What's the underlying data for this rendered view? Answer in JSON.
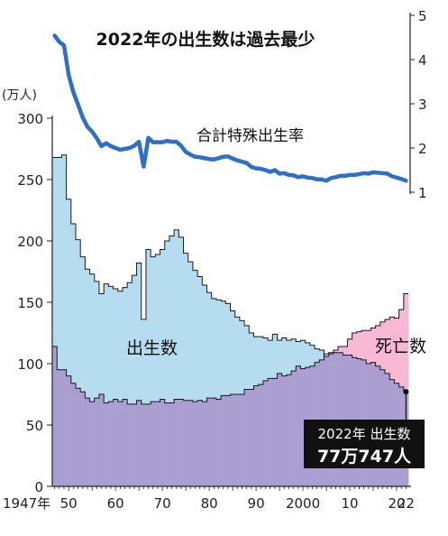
{
  "chart_data": {
    "type": "area",
    "title": "2022年の出生数は過去最少",
    "left_axis": {
      "unit": "(万人)",
      "ylim": [
        0,
        300
      ],
      "ticks": [
        0,
        50,
        100,
        150,
        200,
        250,
        300
      ]
    },
    "right_axis": {
      "ylim": [
        1,
        5
      ],
      "ticks": [
        1,
        2,
        3,
        4,
        5
      ]
    },
    "x_axis": {
      "xlim": [
        1947,
        2022
      ],
      "ticks": [
        {
          "x": 1947,
          "label": "1947年"
        },
        {
          "x": 1950,
          "label": "50"
        },
        {
          "x": 1960,
          "label": "60"
        },
        {
          "x": 1970,
          "label": "70"
        },
        {
          "x": 1980,
          "label": "80"
        },
        {
          "x": 1990,
          "label": "90"
        },
        {
          "x": 2000,
          "label": "2000"
        },
        {
          "x": 2010,
          "label": "10"
        },
        {
          "x": 2020,
          "label": "20"
        },
        {
          "x": 2022,
          "label": "22"
        }
      ]
    },
    "series": [
      {
        "name": "出生数",
        "unit": "万人",
        "color": "#b6dcf0",
        "x": [
          1947,
          1948,
          1949,
          1950,
          1951,
          1952,
          1953,
          1954,
          1955,
          1956,
          1957,
          1958,
          1959,
          1960,
          1961,
          1962,
          1963,
          1964,
          1965,
          1966,
          1967,
          1968,
          1969,
          1970,
          1971,
          1972,
          1973,
          1974,
          1975,
          1976,
          1977,
          1978,
          1979,
          1980,
          1981,
          1982,
          1983,
          1984,
          1985,
          1986,
          1987,
          1988,
          1989,
          1990,
          1991,
          1992,
          1993,
          1994,
          1995,
          1996,
          1997,
          1998,
          1999,
          2000,
          2001,
          2002,
          2003,
          2004,
          2005,
          2006,
          2007,
          2008,
          2009,
          2010,
          2011,
          2012,
          2013,
          2014,
          2015,
          2016,
          2017,
          2018,
          2019,
          2020,
          2021,
          2022
        ],
        "values": [
          268,
          268,
          270,
          234,
          214,
          201,
          187,
          177,
          173,
          167,
          157,
          165,
          163,
          161,
          159,
          162,
          166,
          172,
          182,
          136,
          193,
          187,
          189,
          193,
          200,
          204,
          209,
          203,
          190,
          183,
          176,
          171,
          164,
          158,
          153,
          152,
          151,
          149,
          143,
          138,
          135,
          131,
          125,
          122,
          122,
          121,
          119,
          124,
          119,
          121,
          119,
          120,
          118,
          119,
          117,
          115,
          112,
          111,
          106,
          109,
          109,
          109,
          107,
          107,
          105,
          104,
          103,
          100,
          101,
          98,
          95,
          92,
          87,
          84,
          81,
          77.0747
        ]
      },
      {
        "name": "死亡数",
        "unit": "万人",
        "color": "#f6b8d2",
        "x": [
          1947,
          1948,
          1949,
          1950,
          1951,
          1952,
          1953,
          1954,
          1955,
          1956,
          1957,
          1958,
          1959,
          1960,
          1961,
          1962,
          1963,
          1964,
          1965,
          1966,
          1967,
          1968,
          1969,
          1970,
          1971,
          1972,
          1973,
          1974,
          1975,
          1976,
          1977,
          1978,
          1979,
          1980,
          1981,
          1982,
          1983,
          1984,
          1985,
          1986,
          1987,
          1988,
          1989,
          1990,
          1991,
          1992,
          1993,
          1994,
          1995,
          1996,
          1997,
          1998,
          1999,
          2000,
          2001,
          2002,
          2003,
          2004,
          2005,
          2006,
          2007,
          2008,
          2009,
          2010,
          2011,
          2012,
          2013,
          2014,
          2015,
          2016,
          2017,
          2018,
          2019,
          2020,
          2021,
          2022
        ],
        "values": [
          114,
          95,
          95,
          90,
          84,
          80,
          77,
          72,
          69,
          72,
          75,
          68,
          69,
          71,
          69,
          71,
          67,
          67,
          70,
          67,
          67,
          69,
          69,
          71,
          68,
          68,
          71,
          71,
          70,
          70,
          69,
          70,
          69,
          72,
          72,
          71,
          74,
          74,
          75,
          75,
          75,
          79,
          79,
          82,
          83,
          86,
          88,
          88,
          92,
          90,
          91,
          94,
          98,
          96,
          97,
          98,
          101,
          103,
          108,
          108,
          111,
          114,
          114,
          120,
          125,
          126,
          127,
          127,
          129,
          131,
          134,
          136,
          138,
          137,
          144,
          157
        ]
      },
      {
        "name": "合計特殊出生率",
        "color": "#2f6fc4",
        "axis": "right",
        "x": [
          1947,
          1948,
          1949,
          1950,
          1951,
          1952,
          1953,
          1954,
          1955,
          1956,
          1957,
          1958,
          1959,
          1960,
          1961,
          1962,
          1963,
          1964,
          1965,
          1966,
          1967,
          1968,
          1969,
          1970,
          1971,
          1972,
          1973,
          1974,
          1975,
          1976,
          1977,
          1978,
          1979,
          1980,
          1981,
          1982,
          1983,
          1984,
          1985,
          1986,
          1987,
          1988,
          1989,
          1990,
          1991,
          1992,
          1993,
          1994,
          1995,
          1996,
          1997,
          1998,
          1999,
          2000,
          2001,
          2002,
          2003,
          2004,
          2005,
          2006,
          2007,
          2008,
          2009,
          2010,
          2011,
          2012,
          2013,
          2014,
          2015,
          2016,
          2017,
          2018,
          2019,
          2020,
          2021,
          2022
        ],
        "values": [
          4.54,
          4.4,
          4.32,
          3.65,
          3.26,
          2.98,
          2.69,
          2.48,
          2.37,
          2.22,
          2.04,
          2.11,
          2.04,
          2.0,
          1.96,
          1.98,
          2.0,
          2.05,
          2.14,
          1.58,
          2.23,
          2.13,
          2.13,
          2.13,
          2.16,
          2.14,
          2.14,
          2.05,
          1.91,
          1.85,
          1.8,
          1.79,
          1.77,
          1.75,
          1.74,
          1.77,
          1.8,
          1.81,
          1.76,
          1.72,
          1.69,
          1.66,
          1.57,
          1.54,
          1.53,
          1.5,
          1.46,
          1.5,
          1.42,
          1.43,
          1.39,
          1.38,
          1.34,
          1.36,
          1.33,
          1.32,
          1.29,
          1.29,
          1.26,
          1.32,
          1.34,
          1.37,
          1.37,
          1.39,
          1.39,
          1.41,
          1.43,
          1.42,
          1.45,
          1.44,
          1.43,
          1.42,
          1.36,
          1.33,
          1.3,
          1.26
        ]
      }
    ],
    "annotations": [
      {
        "text": "合計特殊出生率",
        "series": "合計特殊出生率"
      },
      {
        "text": "出生数",
        "series": "出生数"
      },
      {
        "text": "死亡数",
        "series": "死亡数"
      },
      {
        "lines": [
          "2022年 出生数",
          "77万747人"
        ],
        "x": 2022,
        "y": 77.0747
      }
    ],
    "grid": false
  },
  "colors": {
    "birth_rate_line": "#2f6fc4",
    "births_fill": "#b6dcf0",
    "deaths_fill": "#f6b8d2",
    "overlap_fill": "#ab9fd2"
  }
}
